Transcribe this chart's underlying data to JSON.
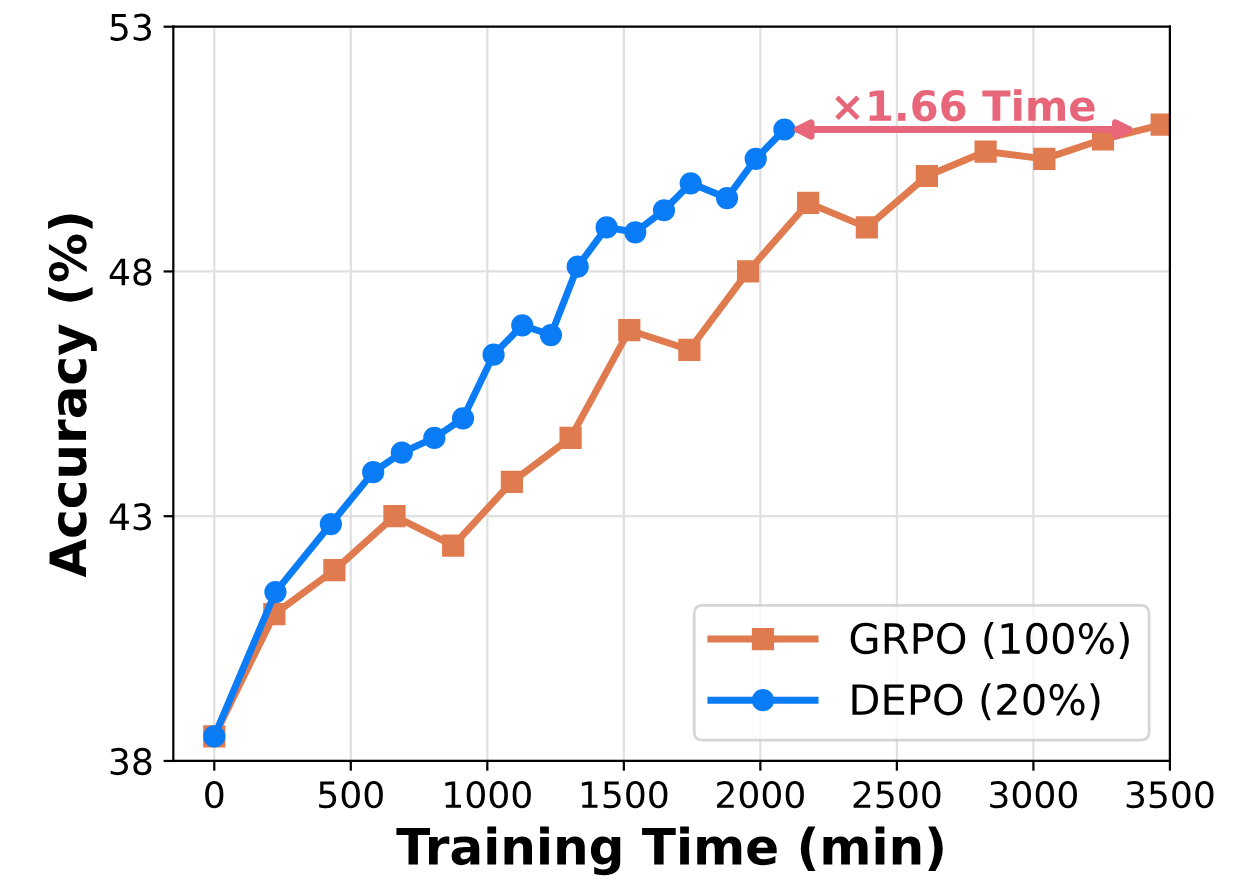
{
  "chart_data": {
    "type": "line",
    "xlabel": "Training Time (min)",
    "ylabel": "Accuracy (%)",
    "xlim": [
      -150,
      3500
    ],
    "xticks": [
      0,
      500,
      1000,
      1500,
      2000,
      2500,
      3000,
      3500
    ],
    "ylim": [
      38,
      53
    ],
    "yticks": [
      38,
      43,
      48,
      53
    ],
    "grid": true,
    "legend": "bottom right",
    "series": [
      {
        "name": "GRPO (100%)",
        "color": "#e07b4f",
        "marker": "square",
        "x": [
          0,
          220,
          440,
          660,
          875,
          1090,
          1305,
          1520,
          1740,
          1955,
          2175,
          2390,
          2610,
          2825,
          3040,
          3255,
          3470
        ],
        "values": [
          38.5,
          41.0,
          41.9,
          43.0,
          42.4,
          43.7,
          44.6,
          46.8,
          46.4,
          48.0,
          49.4,
          48.9,
          49.95,
          50.45,
          50.3,
          50.7,
          51.0
        ]
      },
      {
        "name": "DEPO (20%)",
        "color": "#0a7cf5",
        "marker": "circle",
        "x": [
          0,
          224,
          427,
          582,
          687,
          806,
          911,
          1023,
          1128,
          1233,
          1331,
          1437,
          1542,
          1647,
          1745,
          1878,
          1983,
          2088
        ],
        "values": [
          38.5,
          41.45,
          42.84,
          43.9,
          44.3,
          44.6,
          45.0,
          46.3,
          46.9,
          46.7,
          48.1,
          48.9,
          48.8,
          49.25,
          49.8,
          49.5,
          50.3,
          50.9
        ]
      }
    ],
    "annotations": [
      "×1.66 Time"
    ]
  }
}
